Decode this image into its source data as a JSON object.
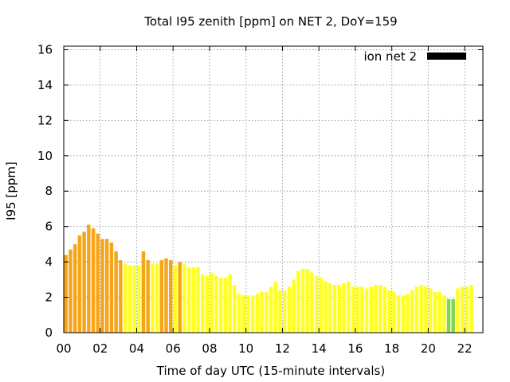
{
  "chart_data": {
    "type": "bar",
    "title": "Total I95 zenith [ppm] on NET 2, DoY=159",
    "xlabel": "Time of day UTC (15-minute intervals)",
    "ylabel": "I95 [ppm]",
    "xlim": [
      0,
      23
    ],
    "ylim": [
      0,
      16.2
    ],
    "xticks": [
      0,
      2,
      4,
      6,
      8,
      10,
      12,
      14,
      16,
      18,
      20,
      22
    ],
    "xtick_labels": [
      "00",
      "02",
      "04",
      "06",
      "08",
      "10",
      "12",
      "14",
      "16",
      "18",
      "20",
      "22"
    ],
    "yticks": [
      0,
      2,
      4,
      6,
      8,
      10,
      12,
      14,
      16
    ],
    "ytick_labels": [
      "0",
      "2",
      "4",
      "6",
      "8",
      "10",
      "12",
      "14",
      "16"
    ],
    "grid": true,
    "legend": {
      "label": "ion net 2",
      "color": "#000000",
      "position": "top-right"
    },
    "interval_hours": 0.25,
    "series": [
      {
        "name": "ion net 2",
        "values": [
          4.4,
          4.7,
          5.0,
          5.5,
          5.7,
          6.1,
          5.9,
          5.6,
          5.3,
          5.3,
          5.1,
          4.6,
          4.1,
          3.9,
          3.8,
          3.8,
          3.8,
          4.6,
          4.1,
          3.9,
          3.9,
          4.1,
          4.2,
          4.1,
          3.8,
          4.0,
          3.9,
          3.7,
          3.7,
          3.7,
          3.3,
          3.2,
          3.4,
          3.2,
          3.1,
          3.1,
          3.3,
          2.7,
          2.2,
          2.1,
          2.1,
          2.1,
          2.2,
          2.3,
          2.3,
          2.6,
          2.9,
          2.4,
          2.4,
          2.6,
          3.0,
          3.5,
          3.6,
          3.6,
          3.4,
          3.2,
          3.1,
          2.9,
          2.8,
          2.7,
          2.7,
          2.8,
          2.9,
          2.6,
          2.6,
          2.6,
          2.5,
          2.6,
          2.7,
          2.7,
          2.6,
          2.4,
          2.3,
          2.1,
          2.1,
          2.2,
          2.4,
          2.6,
          2.7,
          2.6,
          2.5,
          2.3,
          2.3,
          2.1,
          1.9,
          1.9,
          2.5,
          2.6,
          2.6,
          2.7
        ]
      }
    ],
    "colors": {
      "high": "#f5a51a",
      "medium": "#ffff22",
      "low": "#7ed54e",
      "legend_swatch": "#000000",
      "grid": "#a0a0a0"
    }
  }
}
